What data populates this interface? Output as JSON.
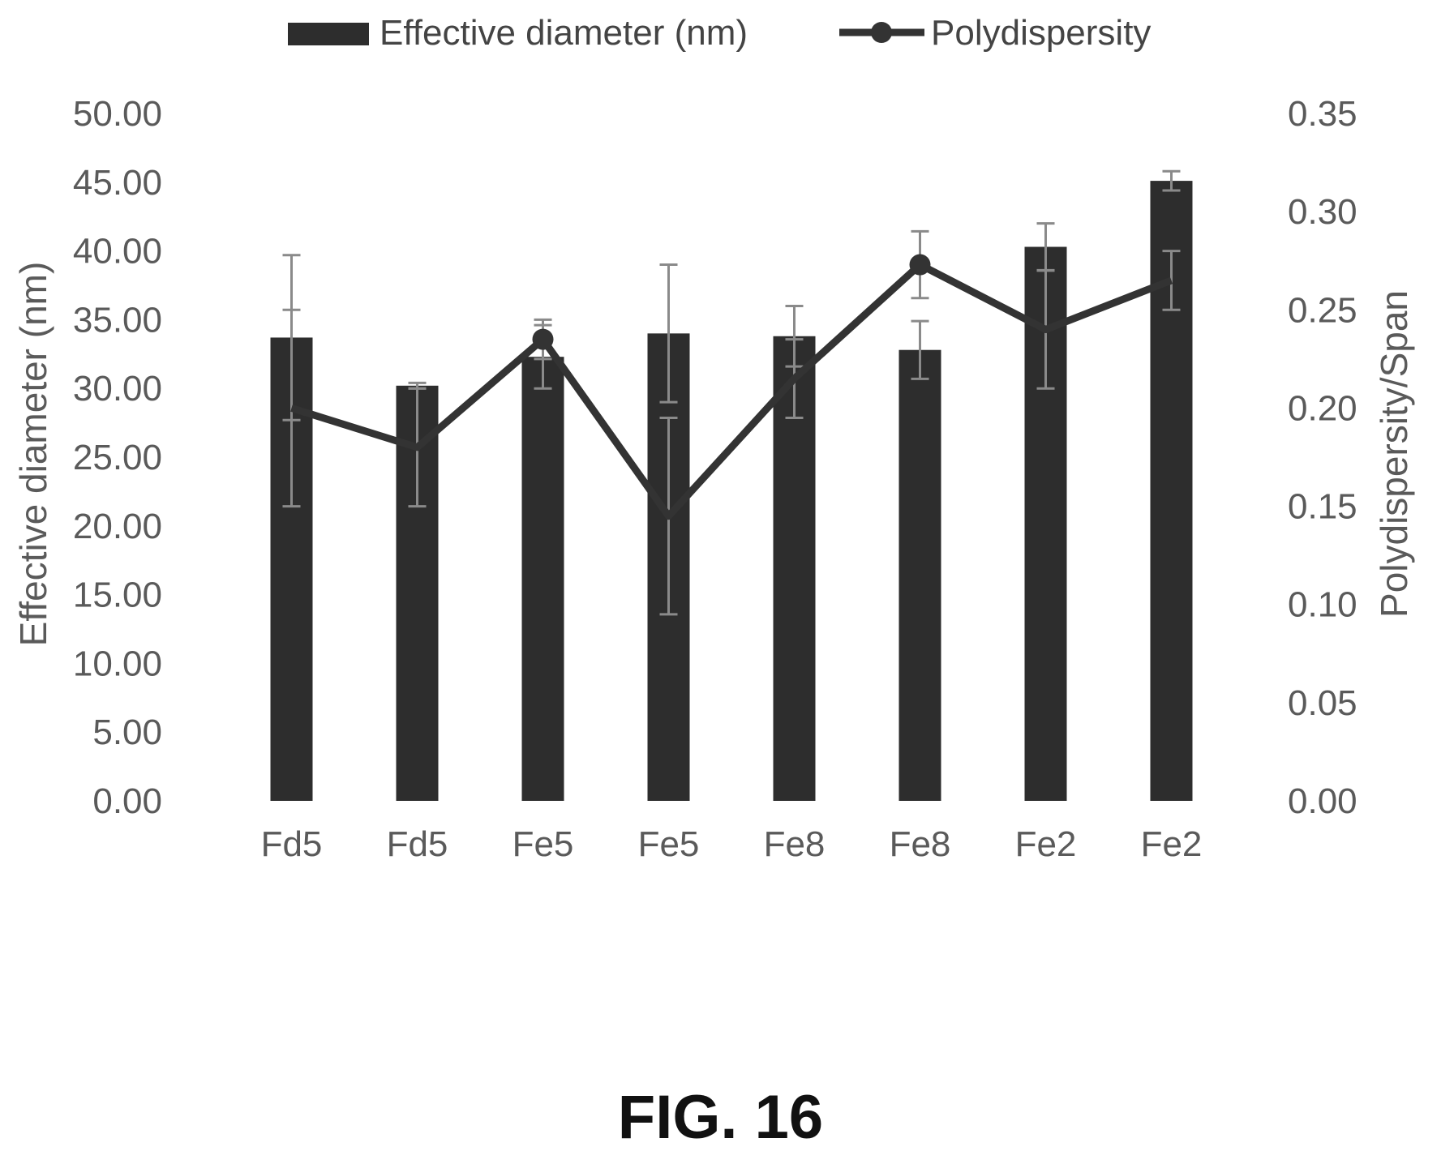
{
  "chart_data": {
    "type": "bar",
    "categories": [
      "Fd5",
      "Fd5",
      "Fe5",
      "Fe5",
      "Fe8",
      "Fe8",
      "Fe2",
      "Fe2"
    ],
    "series": [
      {
        "name": "Effective diameter (nm)",
        "kind": "bar",
        "axis": "left",
        "values": [
          33.7,
          30.2,
          32.3,
          34.0,
          33.8,
          32.8,
          40.3,
          45.1
        ],
        "error": [
          6.0,
          0.2,
          2.3,
          5.0,
          2.2,
          2.1,
          1.7,
          0.7
        ]
      },
      {
        "name": "Polydispersity",
        "kind": "line",
        "axis": "right",
        "values": [
          0.2,
          0.18,
          0.235,
          0.145,
          0.215,
          0.273,
          0.24,
          0.265
        ],
        "error": [
          0.05,
          0.03,
          0.01,
          0.05,
          0.02,
          0.017,
          0.03,
          0.015
        ]
      }
    ],
    "y_left": {
      "label": "Effective diameter (nm)",
      "lim": [
        0,
        50
      ],
      "ticks": [
        "0.00",
        "5.00",
        "10.00",
        "15.00",
        "20.00",
        "25.00",
        "30.00",
        "35.00",
        "40.00",
        "45.00",
        "50.00"
      ]
    },
    "y_right": {
      "label": "Polydispersity/Span",
      "lim": [
        0,
        0.35
      ],
      "ticks": [
        "0.00",
        "0.05",
        "0.10",
        "0.15",
        "0.20",
        "0.25",
        "0.30",
        "0.35"
      ]
    },
    "legend": {
      "placement": "top"
    },
    "grid": false,
    "colors": {
      "bar": "#2d2d2d",
      "line": "#333333",
      "error_bar": "#8a8a8a",
      "text": "#5a5a5a"
    }
  },
  "figure": {
    "caption": "FIG. 16"
  }
}
